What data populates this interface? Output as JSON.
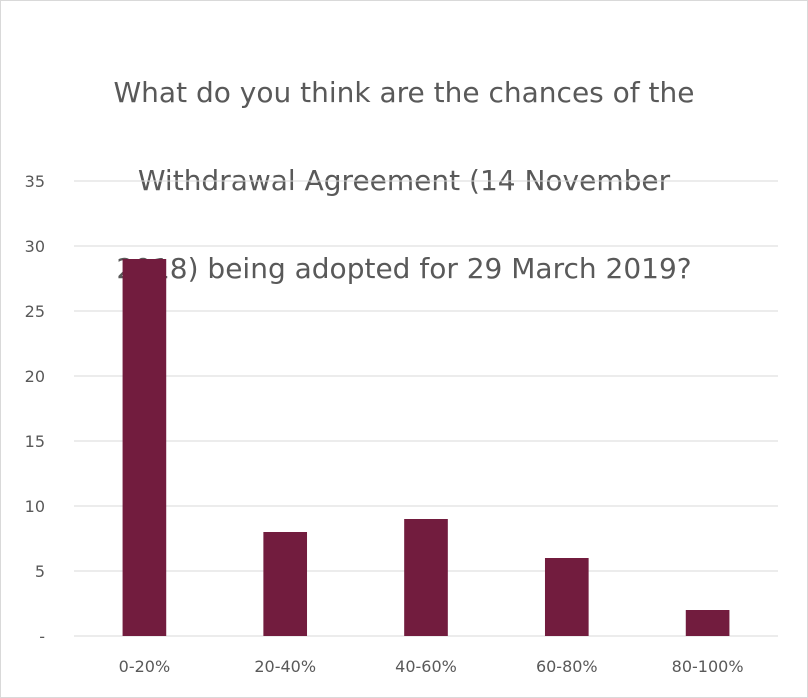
{
  "chart_data": {
    "type": "bar",
    "title": "What do you think are the chances of the Withdrawal Agreement (14 November 2018) being adopted for 29 March 2019?",
    "title_lines": [
      "What do you think are the chances of the",
      "Withdrawal Agreement (14 November",
      "2018) being adopted for 29 March 2019?"
    ],
    "categories": [
      "0-20%",
      "20-40%",
      "40-60%",
      "60-80%",
      "80-100%"
    ],
    "values": [
      29,
      8,
      9,
      6,
      2
    ],
    "ylim": [
      0,
      35
    ],
    "yticks": [
      0,
      5,
      10,
      15,
      20,
      25,
      30,
      35
    ],
    "ytick_labels": [
      "-",
      "5",
      "10",
      "15",
      "20",
      "25",
      "30",
      "35"
    ],
    "grid": true,
    "legend": "none",
    "colors": {
      "bar": "#721c3e",
      "grid": "#d9d9d9",
      "text": "#595959"
    }
  }
}
